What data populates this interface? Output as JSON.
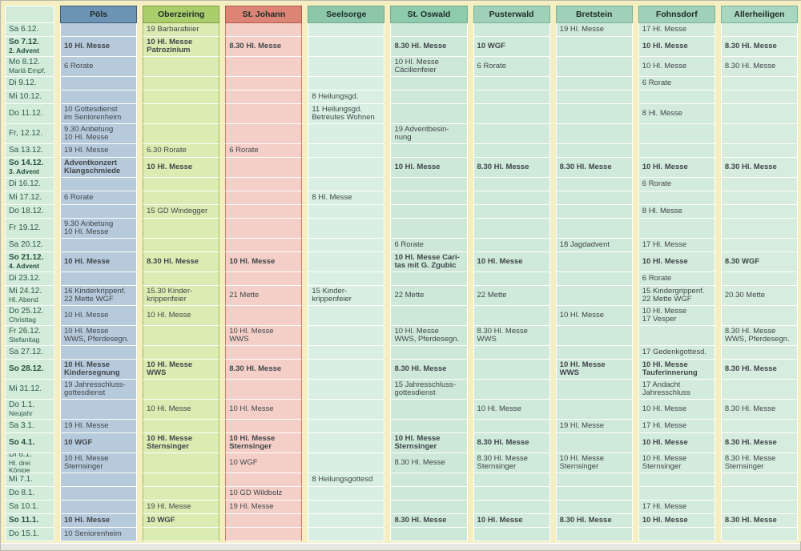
{
  "page": {
    "background": "#f5eec1",
    "description_colors": {
      "date_column_green": "#d2ecd9",
      "pols_blue": "#6d93b5",
      "oberzeiring_green": "#abce6d",
      "stjohann_red": "#dc8576",
      "mint_header": "#9ed1b7"
    }
  },
  "table": {
    "columns": [
      {
        "key": "date",
        "label": "",
        "width": 62,
        "header_bg": "#d2ecd9",
        "header_border": "#ffffff",
        "cell_bg": "#d2ecd9",
        "edge": "#ffffff"
      },
      {
        "key": "pols",
        "label": "Pöls",
        "header_bg": "#6d93b5",
        "header_border": "#3f5d7a",
        "cell_bg": "#b6cadb",
        "edge": "#ffffff"
      },
      {
        "key": "oberzeiring",
        "label": "Oberzeiring",
        "header_bg": "#abce6d",
        "header_border": "#7e9c3e",
        "cell_bg": "#dbecb2",
        "edge": "#9dc054"
      },
      {
        "key": "st-johann",
        "label": "St. Johann",
        "header_bg": "#dc8576",
        "header_border": "#b65b4b",
        "cell_bg": "#f4cfc7",
        "edge": "#d0796a"
      },
      {
        "key": "seelsorge",
        "label": "Seelsorge",
        "header_bg": "#8cc7a9",
        "header_border": "#74ab90",
        "cell_bg": "#d9efe3",
        "edge": "#ffffff"
      },
      {
        "key": "st-oswald",
        "label": "St. Oswald",
        "header_bg": "#8ecbad",
        "header_border": "#74ab90",
        "cell_bg": "#cde8d8",
        "edge": "#ffffff"
      },
      {
        "key": "pusterwald",
        "label": "Pusterwald",
        "header_bg": "#a0d1b8",
        "header_border": "#79b296",
        "cell_bg": "#cfe9da",
        "edge": "#ffffff"
      },
      {
        "key": "bretstein",
        "label": "Bretstein",
        "header_bg": "#a0d1b8",
        "header_border": "#79b296",
        "cell_bg": "#cfe9da",
        "edge": "#ffffff"
      },
      {
        "key": "fohnsdorf",
        "label": "Fohnsdorf",
        "header_bg": "#a0d1b8",
        "header_border": "#79b296",
        "cell_bg": "#d3ebdd",
        "edge": "#ffffff"
      },
      {
        "key": "allerheiligen",
        "label": "Allerheiligen",
        "header_bg": "#a9d6c0",
        "header_border": "#79b296",
        "cell_bg": "#d6ecde",
        "edge": "#ffffff"
      }
    ],
    "rows": [
      {
        "date": "Sa 6.12.",
        "sub": "",
        "sunday": false,
        "tall": false,
        "cells": [
          "",
          "19 Barbarafeier",
          "",
          "",
          "",
          "",
          "19 Hl. Messe",
          "17 Hl. Messe",
          ""
        ]
      },
      {
        "date": "So 7.12.",
        "sub": "2. Advent",
        "sunday": true,
        "tall": true,
        "cells": [
          "10 Hl. Messe",
          "10 Hl. Messe\nPatrozinium",
          "8.30 Hl. Messe",
          "",
          "8.30 Hl. Messe",
          "10 WGF",
          "",
          "10 Hl. Messe",
          "8.30 Hl. Messe"
        ]
      },
      {
        "date": "Mo 8.12.",
        "sub": "Mariä Empf.",
        "sunday": false,
        "tall": true,
        "cells": [
          "6 Rorate",
          "",
          "",
          "",
          "10 Hl. Messe\nCäcilienfeier",
          "6 Rorate",
          "",
          "10 Hl. Messe",
          "8.30 Hl. Messe"
        ]
      },
      {
        "date": "Di 9.12.",
        "sub": "",
        "sunday": false,
        "tall": false,
        "cells": [
          "",
          "",
          "",
          "",
          "",
          "",
          "",
          "6 Rorate",
          ""
        ]
      },
      {
        "date": "Mi 10.12.",
        "sub": "",
        "sunday": false,
        "tall": false,
        "cells": [
          "",
          "",
          "",
          "8 Heilungsgd.",
          "",
          "",
          "",
          "",
          ""
        ]
      },
      {
        "date": "Do 11.12.",
        "sub": "",
        "sunday": false,
        "tall": true,
        "cells": [
          "10 Gottesdienst\nim Seniorenheim",
          "",
          "",
          "11 Heilungsgd.\nBetreutes Wohnen",
          "",
          "",
          "",
          "8 Hl. Messe",
          ""
        ]
      },
      {
        "date": "Fr, 12.12.",
        "sub": "",
        "sunday": false,
        "tall": true,
        "cells": [
          "9.30 Anbetung\n10 Hl. Messe",
          "",
          "",
          "",
          "19 Adventbesin-\nnung",
          "",
          "",
          "",
          ""
        ]
      },
      {
        "date": "Sa 13.12.",
        "sub": "",
        "sunday": false,
        "tall": false,
        "cells": [
          "19 Hl. Messe",
          "6.30 Rorate",
          "6 Rorate",
          "",
          "",
          "",
          "",
          "",
          ""
        ]
      },
      {
        "date": "So 14.12.",
        "sub": "3. Advent",
        "sunday": true,
        "tall": true,
        "cells": [
          "Adventkonzert\nKlangschmiede",
          "10 Hl. Messe",
          "",
          "",
          "10 Hl. Messe",
          "8.30 Hl. Messe",
          "8.30 Hl. Messe",
          "10 Hl. Messe",
          "8.30 Hl. Messe"
        ]
      },
      {
        "date": "Di 16.12.",
        "sub": "",
        "sunday": false,
        "tall": false,
        "cells": [
          "",
          "",
          "",
          "",
          "",
          "",
          "",
          "6 Rorate",
          ""
        ]
      },
      {
        "date": "Mi 17.12.",
        "sub": "",
        "sunday": false,
        "tall": false,
        "cells": [
          "6 Rorate",
          "",
          "",
          "8 Hl. Messe",
          "",
          "",
          "",
          "",
          ""
        ]
      },
      {
        "date": "Do 18.12.",
        "sub": "",
        "sunday": false,
        "tall": false,
        "cells": [
          "",
          "15 GD Windegger",
          "",
          "",
          "",
          "",
          "",
          "8 Hl. Messe",
          ""
        ]
      },
      {
        "date": "Fr 19.12.",
        "sub": "",
        "sunday": false,
        "tall": true,
        "cells": [
          "9.30 Anbetung\n10 Hl. Messe",
          "",
          "",
          "",
          "",
          "",
          "",
          "",
          ""
        ]
      },
      {
        "date": "Sa 20.12.",
        "sub": "",
        "sunday": false,
        "tall": false,
        "cells": [
          "",
          "",
          "",
          "",
          "6 Rorate",
          "",
          "18 Jagdadvent",
          "17 Hl. Messe",
          ""
        ]
      },
      {
        "date": "So 21.12.",
        "sub": "4. Advent",
        "sunday": true,
        "tall": true,
        "cells": [
          "10 Hl. Messe",
          "8.30 Hl. Messe",
          "10 Hl. Messe",
          "",
          "10 Hl. Messe Cari-\ntas mit G. Zgubic",
          "10 Hl. Messe",
          "",
          "10 Hl. Messe",
          "8.30 WGF"
        ]
      },
      {
        "date": "Di 23.12.",
        "sub": "",
        "sunday": false,
        "tall": false,
        "cells": [
          "",
          "",
          "",
          "",
          "",
          "",
          "",
          "6 Rorate",
          ""
        ]
      },
      {
        "date": "Mi 24.12.",
        "sub": "Hl. Abend",
        "sunday": false,
        "tall": true,
        "cells": [
          "16 Kinderkrippenf.\n22 Mette WGF",
          "15.30 Kinder-\nkrippenfeier",
          "21 Mette",
          "15 Kinder-\nkrippenfeier",
          "22 Mette",
          "22 Mette",
          "",
          "15 Kindergrippenf.\n22 Mette WGF",
          "20.30 Mette"
        ]
      },
      {
        "date": "Do 25.12.",
        "sub": "Christtag",
        "sunday": false,
        "tall": true,
        "cells": [
          "10 Hl. Messe",
          "10 Hl. Messe",
          "",
          "",
          "",
          "",
          "10 Hl. Messe",
          "10 Hl. Messe\n17 Vesper",
          ""
        ]
      },
      {
        "date": "Fr 26.12.",
        "sub": "Stefanitag",
        "sunday": false,
        "tall": true,
        "cells": [
          "10 Hl. Messe\nWWS, Pferdesegn.",
          "",
          "10 Hl. Messe\nWWS",
          "",
          "10 Hl. Messe\nWWS, Pferdesegn.",
          "8.30 Hl. Messe\nWWS",
          "",
          "",
          "8.30 Hl. Messe\nWWS, Pferdesegn."
        ]
      },
      {
        "date": "Sa 27.12.",
        "sub": "",
        "sunday": false,
        "tall": false,
        "cells": [
          "",
          "",
          "",
          "",
          "",
          "",
          "",
          "17 Gedenkgottesd.",
          ""
        ]
      },
      {
        "date": "So 28.12.",
        "sub": "",
        "sunday": true,
        "tall": true,
        "cells": [
          "10 Hl. Messe\nKindersegnung",
          "10 Hl. Messe\nWWS",
          "8.30 Hl. Messe",
          "",
          "8.30 Hl. Messe",
          "",
          "10 Hl. Messe\nWWS",
          "10 Hl. Messe\nTauferinnerung",
          "8.30 Hl. Messe"
        ]
      },
      {
        "date": "Mi 31.12.",
        "sub": "",
        "sunday": false,
        "tall": true,
        "cells": [
          "19 Jahresschluss-\ngottesdienst",
          "",
          "",
          "",
          "15 Jahresschluss-\ngottesdienst",
          "",
          "",
          "17 Andacht\nJahresschluss",
          ""
        ]
      },
      {
        "date": "Do 1.1.",
        "sub": "Neujahr",
        "sunday": false,
        "tall": true,
        "cells": [
          "",
          "10 Hl. Messe",
          "10 Hl. Messe",
          "",
          "",
          "10 Hl. Messe",
          "",
          "10 Hl. Messe",
          "8.30 Hl. Messe"
        ]
      },
      {
        "date": "Sa 3.1.",
        "sub": "",
        "sunday": false,
        "tall": false,
        "cells": [
          "19 Hl. Messe",
          "",
          "",
          "",
          "",
          "",
          "19 Hl. Messe",
          "17 Hl. Messe",
          ""
        ]
      },
      {
        "date": "So 4.1.",
        "sub": "",
        "sunday": true,
        "tall": true,
        "cells": [
          "10 WGF",
          "10 Hl. Messe\nSternsinger",
          "10 Hl. Messe\nSternsinger",
          "",
          "10 Hl. Messe\nSternsinger",
          "8.30 Hl. Messe",
          "",
          "10 Hl. Messe",
          "8.30 Hl. Messe"
        ]
      },
      {
        "date": "Di 6.1.",
        "sub": "Hl. drei Könige",
        "sunday": false,
        "tall": true,
        "cells": [
          "10 Hl. Messe\nSternsinger",
          "",
          "10 WGF",
          "",
          "8.30 Hl. Messe",
          "8.30 Hl. Messe\nSternsinger",
          "10 Hl. Messe\nSternsinger",
          "10 Hl. Messe\nSternsinger",
          "8.30 Hl. Messe\nSternsinger"
        ]
      },
      {
        "date": "Mi 7.1.",
        "sub": "",
        "sunday": false,
        "tall": false,
        "cells": [
          "",
          "",
          "",
          "8 Heilungsgottesd",
          "",
          "",
          "",
          "",
          ""
        ]
      },
      {
        "date": "Do 8.1.",
        "sub": "",
        "sunday": false,
        "tall": false,
        "cells": [
          "",
          "",
          "10 GD Wildbolz",
          "",
          "",
          "",
          "",
          "",
          ""
        ]
      },
      {
        "date": "Sa 10.1.",
        "sub": "",
        "sunday": false,
        "tall": false,
        "cells": [
          "",
          "19 Hl. Messe",
          "19 Hl. Messe",
          "",
          "",
          "",
          "",
          "17 Hl. Messe",
          ""
        ]
      },
      {
        "date": "So 11.1.",
        "sub": "",
        "sunday": true,
        "tall": false,
        "cells": [
          "10 Hl. Messe",
          "10 WGF",
          "",
          "",
          "8.30 Hl. Messe",
          "10 Hl. Messe",
          "8.30 Hl. Messe",
          "10 Hl. Messe",
          "8.30 Hl. Messe"
        ]
      },
      {
        "date": "Do 15.1.",
        "sub": "",
        "sunday": false,
        "tall": false,
        "cells": [
          "10 Seniorenheim",
          "",
          "",
          "",
          "",
          "",
          "",
          "",
          ""
        ]
      }
    ]
  }
}
